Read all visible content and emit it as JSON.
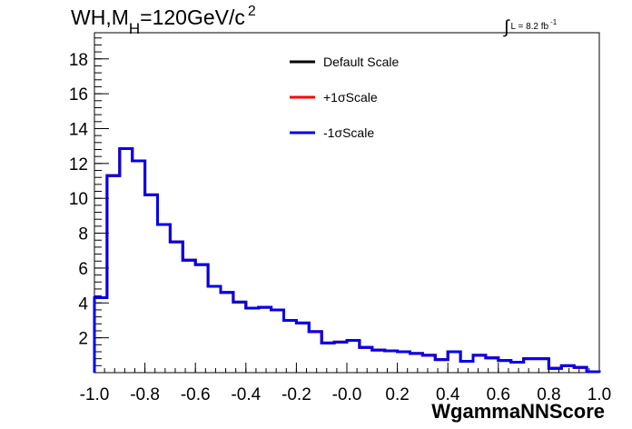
{
  "title": {
    "main": "WH,M",
    "subscript": "H",
    "rest": "=120GeV/c",
    "superscript": "2"
  },
  "lumi": {
    "integral": "∫",
    "text": "L = 8.2 fb",
    "superscript": "-1"
  },
  "chart_data": {
    "type": "line",
    "style": "step-histogram",
    "xlabel": "WgammaNNScore",
    "ylabel": "",
    "xlim": [
      -1.0,
      1.0
    ],
    "ylim": [
      0,
      19.5
    ],
    "grid": false,
    "legend_position": "top-center",
    "x_ticks": [
      -1.0,
      -0.8,
      -0.6,
      -0.4,
      -0.2,
      0.0,
      0.2,
      0.4,
      0.6,
      0.8,
      1.0
    ],
    "x_tick_labels": [
      "-1.0",
      "-0.8",
      "-0.6",
      "-0.4",
      "-0.2",
      "-0.0",
      "0.2",
      "0.4",
      "0.6",
      "0.8",
      "1.0"
    ],
    "y_ticks": [
      2,
      4,
      6,
      8,
      10,
      12,
      14,
      16,
      18
    ],
    "y_tick_labels": [
      "2",
      "4",
      "6",
      "8",
      "10",
      "12",
      "14",
      "16",
      "18"
    ],
    "bin_edges": [
      -1.0,
      -0.95,
      -0.9,
      -0.85,
      -0.8,
      -0.75,
      -0.7,
      -0.65,
      -0.6,
      -0.55,
      -0.5,
      -0.45,
      -0.4,
      -0.35,
      -0.3,
      -0.25,
      -0.2,
      -0.15,
      -0.1,
      -0.05,
      0.0,
      0.05,
      0.1,
      0.15,
      0.2,
      0.25,
      0.3,
      0.35,
      0.4,
      0.45,
      0.5,
      0.55,
      0.6,
      0.65,
      0.7,
      0.75,
      0.8,
      0.85,
      0.9,
      0.95,
      1.0
    ],
    "series": [
      {
        "name": "Default Scale",
        "color": "#000000",
        "values": [
          4.3,
          11.3,
          12.85,
          12.15,
          10.2,
          8.5,
          7.5,
          6.45,
          6.2,
          4.95,
          4.6,
          4.05,
          3.7,
          3.75,
          3.6,
          3.0,
          2.85,
          2.35,
          1.7,
          1.75,
          1.85,
          1.45,
          1.3,
          1.25,
          1.2,
          1.1,
          1.0,
          0.75,
          1.2,
          0.65,
          1.0,
          0.85,
          0.7,
          0.6,
          0.8,
          0.8,
          0.25,
          0.4,
          0.3,
          0.05
        ]
      },
      {
        "name": "+1σScale",
        "color": "#ff0000",
        "values": [
          4.3,
          11.3,
          12.85,
          12.15,
          10.2,
          8.5,
          7.5,
          6.45,
          6.2,
          4.95,
          4.6,
          4.05,
          3.7,
          3.75,
          3.6,
          3.0,
          2.85,
          2.35,
          1.7,
          1.75,
          1.85,
          1.45,
          1.3,
          1.25,
          1.2,
          1.1,
          1.0,
          0.75,
          1.2,
          0.65,
          1.0,
          0.85,
          0.7,
          0.6,
          0.8,
          0.8,
          0.25,
          0.4,
          0.3,
          0.05
        ]
      },
      {
        "name": "-1σScale",
        "color": "#0000ee",
        "values": [
          4.3,
          11.3,
          12.85,
          12.15,
          10.2,
          8.5,
          7.5,
          6.45,
          6.2,
          4.95,
          4.6,
          4.05,
          3.7,
          3.75,
          3.6,
          3.0,
          2.85,
          2.35,
          1.7,
          1.75,
          1.85,
          1.45,
          1.3,
          1.25,
          1.2,
          1.1,
          1.0,
          0.75,
          1.2,
          0.65,
          1.0,
          0.85,
          0.7,
          0.6,
          0.8,
          0.8,
          0.25,
          0.4,
          0.3,
          0.05
        ]
      }
    ]
  }
}
